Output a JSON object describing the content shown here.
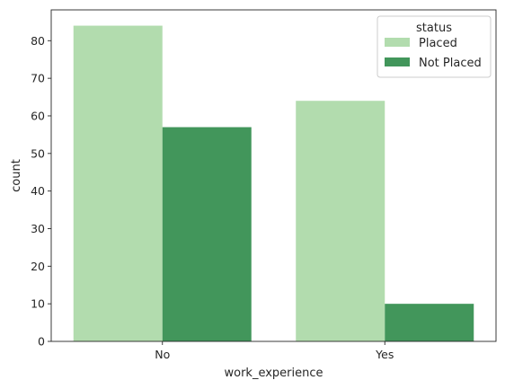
{
  "chart_data": {
    "type": "bar",
    "title": "",
    "xlabel": "work_experience",
    "ylabel": "count",
    "categories": [
      "No",
      "Yes"
    ],
    "series": [
      {
        "name": "Placed",
        "values": [
          84,
          64
        ],
        "color": "#b2dcae"
      },
      {
        "name": "Not Placed",
        "values": [
          57,
          10
        ],
        "color": "#42965b"
      }
    ],
    "ylim": [
      0,
      88.2
    ],
    "yticks": [
      0,
      10,
      20,
      30,
      40,
      50,
      60,
      70,
      80
    ],
    "grid": false,
    "legend": {
      "title": "status",
      "position": "top-right"
    }
  }
}
